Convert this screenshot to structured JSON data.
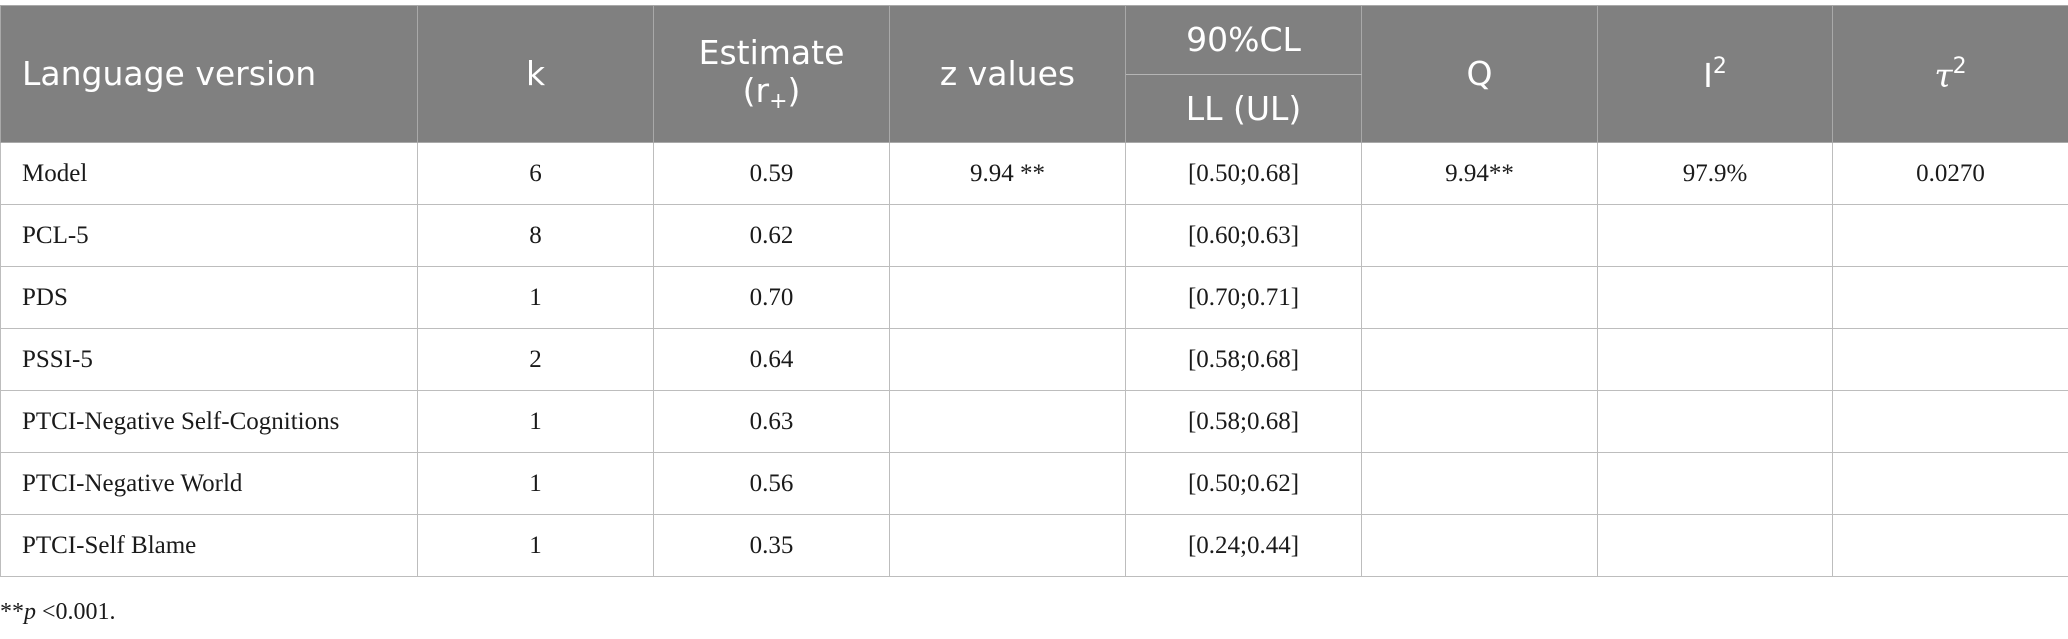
{
  "table": {
    "headers": {
      "language_version": "Language version",
      "k": "k",
      "estimate_line1": "Estimate",
      "estimate_r": "(r",
      "estimate_sub": "+",
      "estimate_close": ")",
      "z_values": "z values",
      "ci_group": "90%CL",
      "ci_sub": "LL (UL)",
      "q": "Q",
      "i_base": "I",
      "i_sup": "2",
      "tau_base": "τ",
      "tau_sup": "2"
    },
    "rows": [
      {
        "language": "Model",
        "k": "6",
        "estimate": "0.59",
        "z": "9.94 **",
        "ci": "[0.50;0.68]",
        "q": "9.94**",
        "i2": "97.9%",
        "tau2": "0.0270"
      },
      {
        "language": "PCL-5",
        "k": "8",
        "estimate": "0.62",
        "z": "",
        "ci": "[0.60;0.63]",
        "q": "",
        "i2": "",
        "tau2": ""
      },
      {
        "language": "PDS",
        "k": "1",
        "estimate": "0.70",
        "z": "",
        "ci": "[0.70;0.71]",
        "q": "",
        "i2": "",
        "tau2": ""
      },
      {
        "language": "PSSI-5",
        "k": "2",
        "estimate": "0.64",
        "z": "",
        "ci": "[0.58;0.68]",
        "q": "",
        "i2": "",
        "tau2": ""
      },
      {
        "language": "PTCI-Negative Self-Cognitions",
        "k": "1",
        "estimate": "0.63",
        "z": "",
        "ci": "[0.58;0.68]",
        "q": "",
        "i2": "",
        "tau2": ""
      },
      {
        "language": "PTCI-Negative World",
        "k": "1",
        "estimate": "0.56",
        "z": "",
        "ci": "[0.50;0.62]",
        "q": "",
        "i2": "",
        "tau2": ""
      },
      {
        "language": "PTCI-Self Blame",
        "k": "1",
        "estimate": "0.35",
        "z": "",
        "ci": "[0.24;0.44]",
        "q": "",
        "i2": "",
        "tau2": ""
      }
    ]
  },
  "footnote": {
    "stars": "**",
    "p": "p",
    "rest": " <0.001."
  },
  "colors": {
    "header_bg": "#808080",
    "header_text": "#ffffff",
    "grid": "#bdbdbd"
  }
}
